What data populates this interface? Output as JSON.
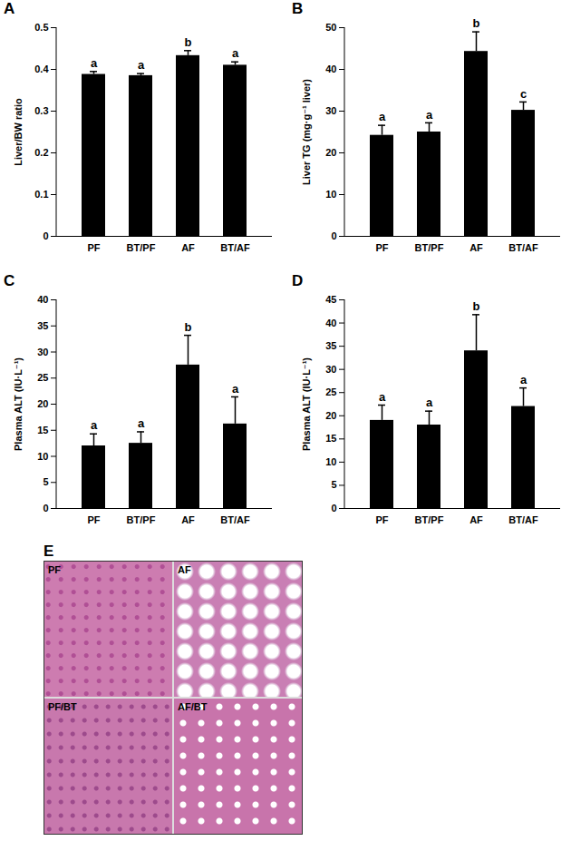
{
  "chart_data": [
    {
      "type": "bar",
      "title": "A",
      "y_label": "Liver/BW ratio",
      "categories": [
        "PF",
        "BT/PF",
        "AF",
        "BT/AF"
      ],
      "values": [
        0.388,
        0.385,
        0.433,
        0.41
      ],
      "errors": [
        0.007,
        0.005,
        0.012,
        0.008
      ],
      "annotations": [
        "a",
        "a",
        "b",
        "a"
      ],
      "color": "#000000",
      "ylim": [
        0,
        0.5
      ],
      "yticks": [
        0,
        0.1,
        0.2,
        0.3,
        0.4,
        0.5
      ],
      "grid": false
    },
    {
      "type": "bar",
      "title": "B",
      "y_label": "Liver TG (mg·g⁻¹ liver)",
      "categories": [
        "PF",
        "BT/PF",
        "AF",
        "BT/AF"
      ],
      "values": [
        24.2,
        25.0,
        44.3,
        30.2
      ],
      "errors": [
        2.4,
        2.2,
        4.7,
        2.0
      ],
      "annotations": [
        "a",
        "a",
        "b",
        "c"
      ],
      "color": "#000000",
      "ylim": [
        0,
        50
      ],
      "yticks": [
        0,
        10,
        20,
        30,
        40,
        50
      ],
      "grid": false
    },
    {
      "type": "bar",
      "title": "C",
      "y_label": "Plasma ALT (IU·L⁻¹)",
      "categories": [
        "PF",
        "BT/PF",
        "AF",
        "BT/AF"
      ],
      "values": [
        12.0,
        12.5,
        27.5,
        16.2
      ],
      "errors": [
        2.3,
        2.2,
        5.7,
        5.2
      ],
      "annotations": [
        "a",
        "a",
        "b",
        "a"
      ],
      "color": "#000000",
      "ylim": [
        0,
        40
      ],
      "yticks": [
        0,
        5,
        10,
        15,
        20,
        25,
        30,
        35,
        40
      ],
      "grid": false
    },
    {
      "type": "bar",
      "title": "D",
      "y_label": "Plasma ALT (IU·L⁻¹)",
      "categories": [
        "PF",
        "BT/PF",
        "AF",
        "BT/AF"
      ],
      "values": [
        19.0,
        18.0,
        34.0,
        22.0
      ],
      "errors": [
        3.3,
        3.0,
        7.8,
        4.0
      ],
      "annotations": [
        "a",
        "a",
        "b",
        "a"
      ],
      "color": "#000000",
      "ylim": [
        0,
        45
      ],
      "yticks": [
        0,
        5,
        10,
        15,
        20,
        25,
        30,
        35,
        40,
        45
      ],
      "grid": false
    }
  ],
  "micrograph": {
    "title": "E",
    "labels": [
      "PF",
      "AF",
      "PF/BT",
      "AF/BT"
    ]
  }
}
